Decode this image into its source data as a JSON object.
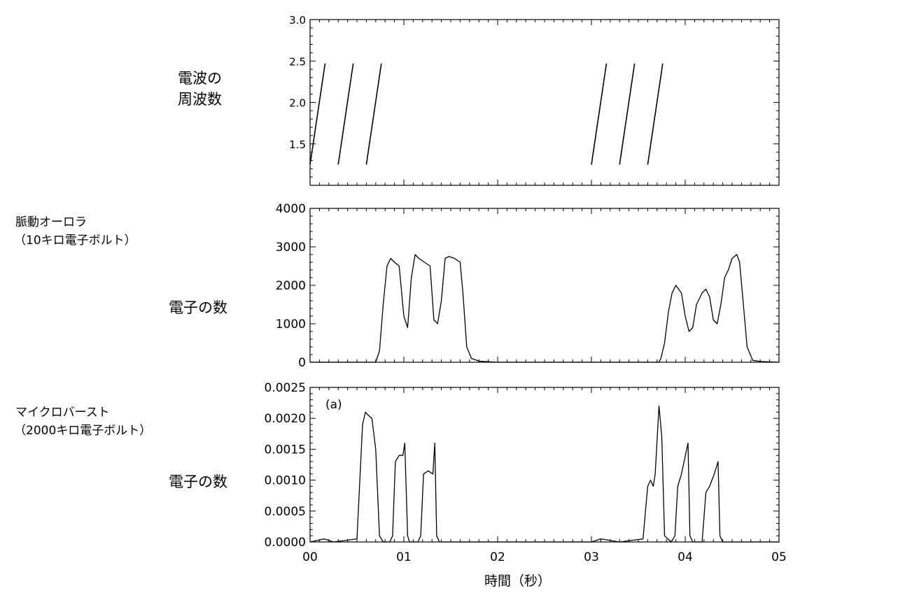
{
  "chart_data": [
    {
      "type": "line",
      "panel": "top",
      "ylabel": "電波の\n周波数",
      "xlim": [
        0,
        5
      ],
      "ylim": [
        1.0,
        3.0
      ],
      "yticks": [
        1.5,
        2.0,
        2.5,
        3.0
      ],
      "ytick_labels": [
        "1.5",
        "2.0",
        "2.5",
        "3.0"
      ],
      "series": [
        {
          "segments": [
            {
              "x": [
                0.0,
                0.16
              ],
              "y": [
                1.25,
                2.47
              ]
            },
            {
              "x": [
                0.3,
                0.46
              ],
              "y": [
                1.25,
                2.47
              ]
            },
            {
              "x": [
                0.6,
                0.76
              ],
              "y": [
                1.25,
                2.47
              ]
            },
            {
              "x": [
                3.0,
                3.16
              ],
              "y": [
                1.25,
                2.47
              ]
            },
            {
              "x": [
                3.3,
                3.46
              ],
              "y": [
                1.25,
                2.47
              ]
            },
            {
              "x": [
                3.6,
                3.76
              ],
              "y": [
                1.25,
                2.47
              ]
            }
          ]
        }
      ]
    },
    {
      "type": "line",
      "panel": "middle",
      "title": "脈動オーロラ\n（10キロ電子ボルト）",
      "ylabel": "電子の数",
      "xlim": [
        0,
        5
      ],
      "ylim": [
        0,
        4000
      ],
      "yticks": [
        0,
        1000,
        2000,
        3000,
        4000
      ],
      "ytick_labels": [
        "0",
        "1000",
        "2000",
        "3000",
        "4000"
      ],
      "series": [
        {
          "x": [
            0.0,
            0.7,
            0.74,
            0.78,
            0.82,
            0.86,
            0.9,
            0.95,
            1.0,
            1.04,
            1.08,
            1.12,
            1.16,
            1.22,
            1.28,
            1.32,
            1.36,
            1.4,
            1.44,
            1.48,
            1.54,
            1.6,
            1.63,
            1.67,
            1.72,
            1.8,
            2.0,
            2.5,
            3.0,
            3.72,
            3.74,
            3.78,
            3.82,
            3.86,
            3.9,
            3.96,
            4.0,
            4.04,
            4.08,
            4.12,
            4.18,
            4.22,
            4.26,
            4.3,
            4.34,
            4.38,
            4.42,
            4.46,
            4.5,
            4.55,
            4.58,
            4.62,
            4.66,
            4.72,
            4.8,
            5.0
          ],
          "y": [
            0,
            0,
            300,
            1500,
            2500,
            2700,
            2600,
            2500,
            1200,
            900,
            2200,
            2800,
            2700,
            2600,
            2500,
            1100,
            1000,
            1600,
            2700,
            2750,
            2700,
            2600,
            1800,
            400,
            100,
            30,
            0,
            0,
            0,
            0,
            100,
            500,
            1300,
            1800,
            2000,
            1800,
            1200,
            800,
            900,
            1500,
            1800,
            1900,
            1700,
            1100,
            1000,
            1500,
            2200,
            2400,
            2700,
            2800,
            2600,
            1500,
            400,
            50,
            20,
            0
          ]
        }
      ]
    },
    {
      "type": "line",
      "panel": "bottom",
      "title": "マイクロバースト\n（2000キロ電子ボルト）",
      "ylabel": "電子の数",
      "annotation": "(a)",
      "xlabel": "時間（秒）",
      "xlim": [
        0,
        5
      ],
      "xticks": [
        0,
        1,
        2,
        3,
        4,
        5
      ],
      "xtick_labels": [
        "00",
        "01",
        "02",
        "03",
        "04",
        "05"
      ],
      "ylim": [
        0,
        0.0025
      ],
      "yticks": [
        0.0,
        0.0005,
        0.001,
        0.0015,
        0.002,
        0.0025
      ],
      "ytick_labels": [
        "0.0000",
        "0.0005",
        "0.0010",
        "0.0015",
        "0.0020",
        "0.0025"
      ],
      "series": [
        {
          "x": [
            0.0,
            0.15,
            0.25,
            0.5,
            0.56,
            0.59,
            0.62,
            0.66,
            0.7,
            0.74,
            0.78,
            0.85,
            0.88,
            0.91,
            0.95,
            0.99,
            1.01,
            1.04,
            1.06,
            1.15,
            1.18,
            1.21,
            1.26,
            1.31,
            1.33,
            1.35,
            1.38,
            1.5,
            2.0,
            2.5,
            3.0,
            3.1,
            3.3,
            3.55,
            3.6,
            3.63,
            3.66,
            3.68,
            3.72,
            3.75,
            3.78,
            3.85,
            3.89,
            3.92,
            3.96,
            4.03,
            4.05,
            4.08,
            4.18,
            4.22,
            4.26,
            4.31,
            4.35,
            4.37,
            4.4,
            4.6,
            5.0
          ],
          "y": [
            0,
            5e-05,
            0,
            5e-05,
            0.0019,
            0.0021,
            0.00205,
            0.002,
            0.0015,
            0.0001,
            0,
            0,
            0.0001,
            0.0013,
            0.0014,
            0.0014,
            0.0016,
            0.0001,
            0,
            0,
            0.0001,
            0.0011,
            0.00115,
            0.0011,
            0.0016,
            0.0001,
            0,
            0,
            0,
            0,
            0,
            5e-05,
            0,
            5e-05,
            0.0009,
            0.001,
            0.0009,
            0.0011,
            0.0022,
            0.0017,
            0.0001,
            0,
            0.0001,
            0.0009,
            0.0011,
            0.0016,
            0.0001,
            0,
            0,
            0.0008,
            0.0009,
            0.0011,
            0.0013,
            0.0001,
            0,
            0,
            0
          ]
        }
      ]
    }
  ],
  "page": {
    "top_ylabel_line1": "電波の",
    "top_ylabel_line2": "周波数",
    "mid_title_line1": "脈動オーロラ",
    "mid_title_line2": "（10キロ電子ボルト）",
    "mid_ylabel": "電子の数",
    "bot_title_line1": "マイクロバースト",
    "bot_title_line2": "（2000キロ電子ボルト）",
    "bot_ylabel": "電子の数",
    "annotation": "(a)",
    "xlabel": "時間（秒）"
  }
}
